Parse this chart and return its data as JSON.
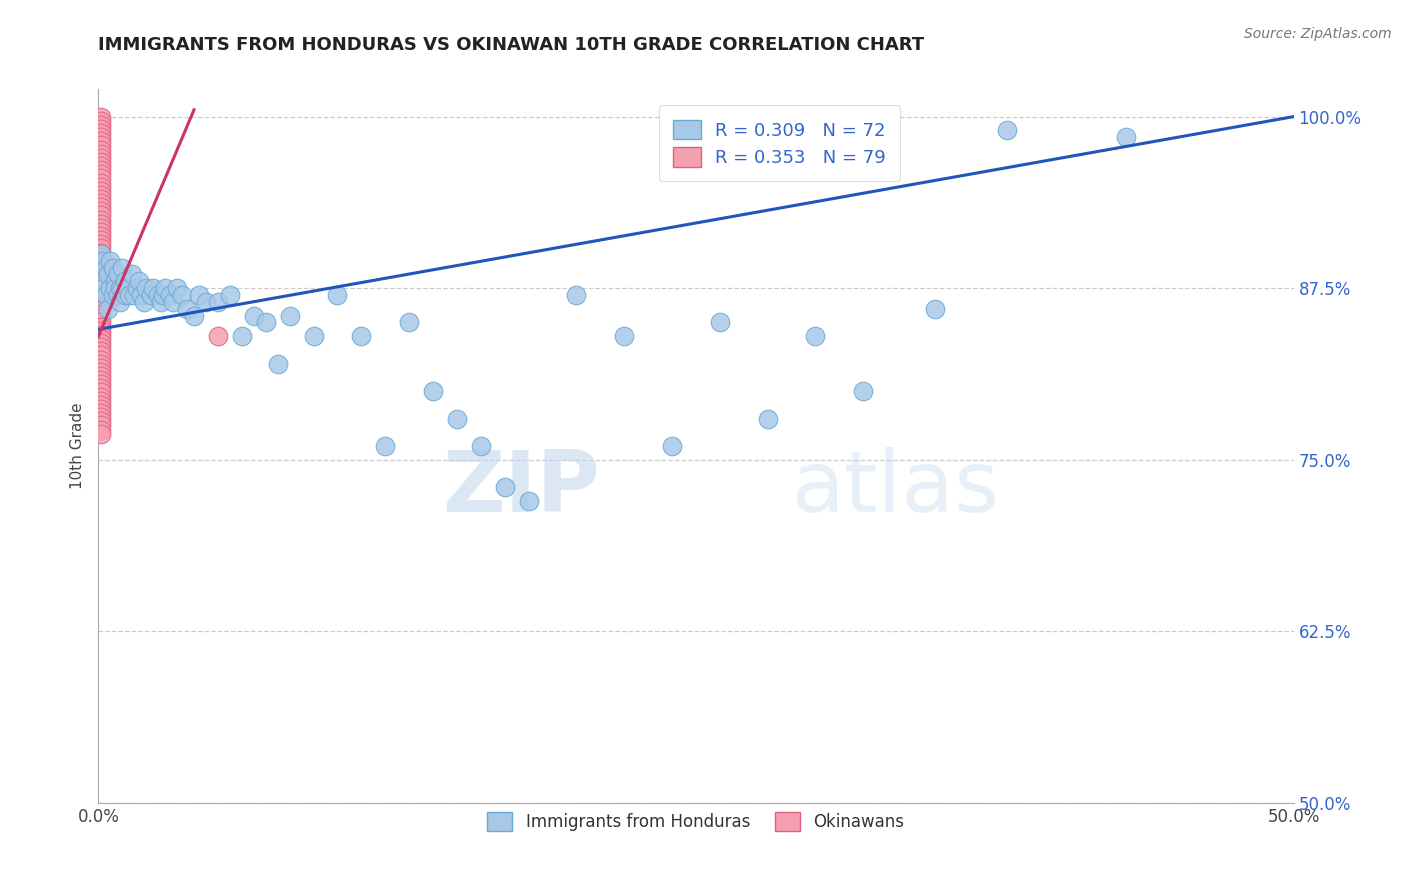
{
  "title": "IMMIGRANTS FROM HONDURAS VS OKINAWAN 10TH GRADE CORRELATION CHART",
  "source": "Source: ZipAtlas.com",
  "ylabel": "10th Grade",
  "xlim": [
    0.0,
    0.5
  ],
  "ylim": [
    0.5,
    1.02
  ],
  "xtick_labels": [
    "0.0%",
    "50.0%"
  ],
  "xtick_vals": [
    0.0,
    0.5
  ],
  "ytick_labels": [
    "100.0%",
    "87.5%",
    "75.0%",
    "62.5%",
    "50.0%"
  ],
  "ytick_vals": [
    1.0,
    0.875,
    0.75,
    0.625,
    0.5
  ],
  "legend_labels": [
    "Immigrants from Honduras",
    "Okinawans"
  ],
  "blue_color": "#a8c8e8",
  "blue_edge": "#6aaad4",
  "pink_color": "#f4a0b0",
  "pink_edge": "#e06080",
  "line_color": "#2255bb",
  "pink_line_color": "#cc3366",
  "R_blue": 0.309,
  "N_blue": 72,
  "R_pink": 0.353,
  "N_pink": 79,
  "watermark_zip": "ZIP",
  "watermark_atlas": "atlas",
  "blue_line_x0": 0.0,
  "blue_line_y0": 0.845,
  "blue_line_x1": 0.5,
  "blue_line_y1": 1.0,
  "pink_line_x0": 0.0,
  "pink_line_y0": 0.84,
  "pink_line_x1": 0.04,
  "pink_line_y1": 1.005,
  "blue_scatter_x": [
    0.001,
    0.001,
    0.002,
    0.002,
    0.003,
    0.003,
    0.004,
    0.004,
    0.005,
    0.005,
    0.006,
    0.006,
    0.007,
    0.007,
    0.008,
    0.008,
    0.009,
    0.009,
    0.01,
    0.01,
    0.011,
    0.011,
    0.012,
    0.013,
    0.014,
    0.015,
    0.016,
    0.017,
    0.018,
    0.019,
    0.02,
    0.022,
    0.023,
    0.025,
    0.026,
    0.027,
    0.028,
    0.03,
    0.031,
    0.033,
    0.035,
    0.037,
    0.04,
    0.042,
    0.045,
    0.05,
    0.055,
    0.06,
    0.065,
    0.07,
    0.075,
    0.08,
    0.09,
    0.1,
    0.11,
    0.12,
    0.13,
    0.14,
    0.15,
    0.16,
    0.17,
    0.18,
    0.2,
    0.22,
    0.24,
    0.26,
    0.28,
    0.3,
    0.32,
    0.35,
    0.38,
    0.43
  ],
  "blue_scatter_y": [
    0.9,
    0.88,
    0.895,
    0.875,
    0.89,
    0.87,
    0.885,
    0.86,
    0.895,
    0.875,
    0.87,
    0.89,
    0.88,
    0.875,
    0.87,
    0.885,
    0.865,
    0.875,
    0.89,
    0.875,
    0.87,
    0.88,
    0.875,
    0.87,
    0.885,
    0.87,
    0.875,
    0.88,
    0.87,
    0.865,
    0.875,
    0.87,
    0.875,
    0.87,
    0.865,
    0.87,
    0.875,
    0.87,
    0.865,
    0.875,
    0.87,
    0.86,
    0.855,
    0.87,
    0.865,
    0.865,
    0.87,
    0.84,
    0.855,
    0.85,
    0.82,
    0.855,
    0.84,
    0.87,
    0.84,
    0.76,
    0.85,
    0.8,
    0.78,
    0.76,
    0.73,
    0.72,
    0.87,
    0.84,
    0.76,
    0.85,
    0.78,
    0.84,
    0.8,
    0.86,
    0.99,
    0.985
  ],
  "pink_scatter_x": [
    0.001,
    0.001,
    0.001,
    0.001,
    0.001,
    0.001,
    0.001,
    0.001,
    0.001,
    0.001,
    0.001,
    0.001,
    0.001,
    0.001,
    0.001,
    0.001,
    0.001,
    0.001,
    0.001,
    0.001,
    0.001,
    0.001,
    0.001,
    0.001,
    0.001,
    0.001,
    0.001,
    0.001,
    0.001,
    0.001,
    0.001,
    0.001,
    0.001,
    0.001,
    0.001,
    0.001,
    0.001,
    0.001,
    0.001,
    0.001,
    0.001,
    0.001,
    0.001,
    0.001,
    0.001,
    0.001,
    0.001,
    0.001,
    0.001,
    0.001,
    0.001,
    0.001,
    0.001,
    0.001,
    0.001,
    0.001,
    0.001,
    0.001,
    0.001,
    0.001,
    0.001,
    0.001,
    0.001,
    0.001,
    0.001,
    0.001,
    0.001,
    0.001,
    0.001,
    0.001,
    0.001,
    0.001,
    0.001,
    0.001,
    0.001,
    0.001,
    0.001,
    0.001,
    0.05
  ],
  "pink_scatter_y": [
    1.0,
    0.997,
    0.994,
    0.991,
    0.988,
    0.985,
    0.982,
    0.979,
    0.976,
    0.973,
    0.97,
    0.967,
    0.964,
    0.961,
    0.958,
    0.955,
    0.952,
    0.949,
    0.946,
    0.943,
    0.94,
    0.937,
    0.934,
    0.931,
    0.928,
    0.925,
    0.922,
    0.919,
    0.916,
    0.913,
    0.91,
    0.907,
    0.904,
    0.901,
    0.898,
    0.895,
    0.892,
    0.889,
    0.886,
    0.883,
    0.88,
    0.877,
    0.874,
    0.871,
    0.868,
    0.865,
    0.862,
    0.859,
    0.856,
    0.853,
    0.85,
    0.847,
    0.844,
    0.841,
    0.838,
    0.835,
    0.832,
    0.829,
    0.826,
    0.823,
    0.82,
    0.817,
    0.814,
    0.811,
    0.808,
    0.805,
    0.802,
    0.799,
    0.796,
    0.793,
    0.79,
    0.787,
    0.784,
    0.781,
    0.778,
    0.775,
    0.772,
    0.769,
    0.84
  ]
}
